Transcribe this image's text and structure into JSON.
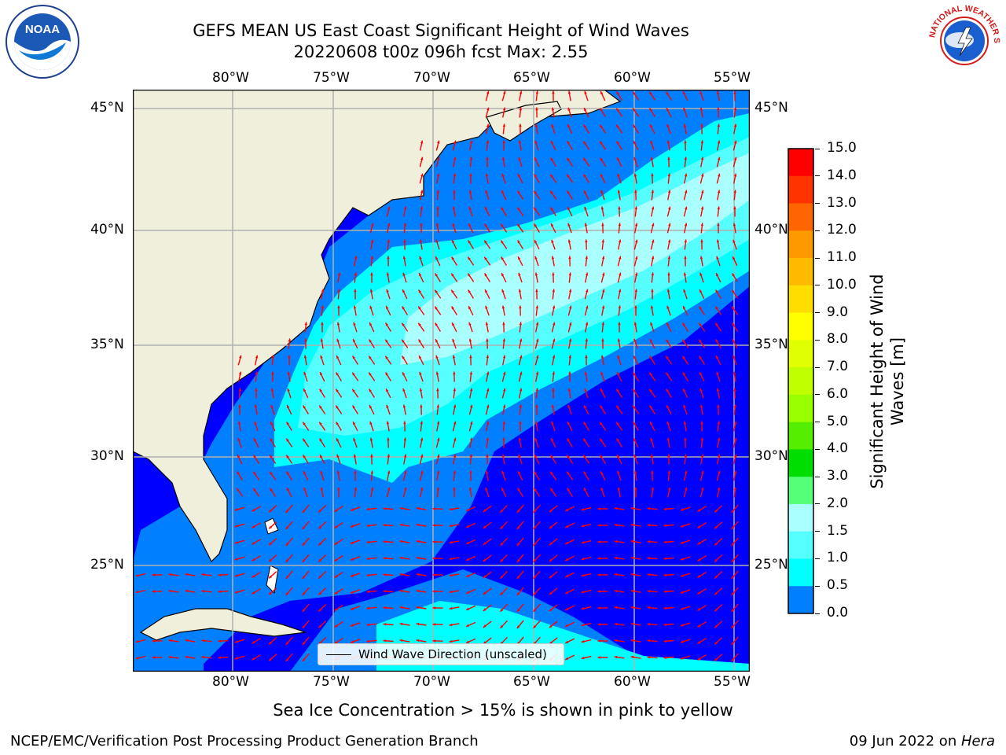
{
  "title": {
    "line1": "GEFS MEAN US East Coast Significant Height of Wind Waves",
    "line2": "20220608 t00z 096h fcst   Max: 2.55"
  },
  "map": {
    "lon_ticks": [
      "80°W",
      "75°W",
      "70°W",
      "65°W",
      "60°W",
      "55°W"
    ],
    "lat_ticks": [
      "45°N",
      "40°N",
      "35°N",
      "30°N",
      "25°N"
    ],
    "legend_label": "Wind Wave Direction (unscaled)",
    "colors": {
      "land": "#efefdc",
      "level_0": "#0000ff",
      "level_05": "#0080ff",
      "level_1": "#00ffff",
      "level_15": "#55ffff",
      "level_2": "#aaffff",
      "arrow": "#ff0000",
      "grid": "#b0b0b0"
    }
  },
  "colorbar": {
    "label": "Significant Height of Wind Waves [m]",
    "ticks": [
      "15.0",
      "14.0",
      "13.0",
      "12.0",
      "11.0",
      "10.0",
      "9.0",
      "8.0",
      "7.0",
      "6.0",
      "5.0",
      "4.0",
      "3.0",
      "2.0",
      "1.5",
      "1.0",
      "0.5",
      "0.0"
    ],
    "colors": [
      "#ff0000",
      "#ff3300",
      "#ff6600",
      "#ff9900",
      "#ffbb00",
      "#ffdd00",
      "#ffff00",
      "#e0ff00",
      "#c0ff00",
      "#99ff00",
      "#55ee00",
      "#00dd00",
      "#55ff77",
      "#aaffff",
      "#55ffff",
      "#00ffff",
      "#0080ff",
      "#0000ff"
    ]
  },
  "caption": "Sea Ice Concentration > 15% is shown in pink to yellow",
  "footer": {
    "left": "NCEP/EMC/Verification Post Processing Product Generation Branch",
    "date": "09 Jun 2022 on ",
    "machine": "Hera"
  },
  "logos": {
    "noaa_text": "NOAA",
    "nws_text": "NATIONAL WEATHER SERVICE"
  }
}
